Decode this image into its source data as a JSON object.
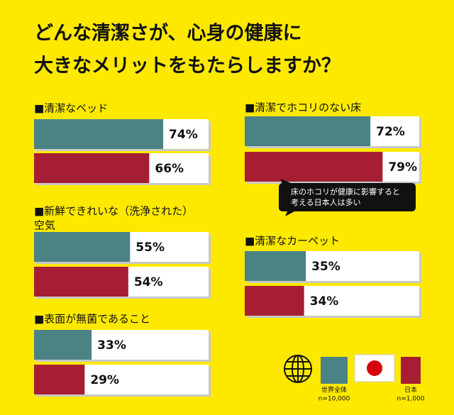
{
  "title": [
    "どんな清潔さが、心身の健康に",
    "大きなメリットをもたらしますか？"
  ],
  "series": [
    {
      "name": "世界全体",
      "note": "n=10,000",
      "color": "#4b8384"
    },
    {
      "name": "日本",
      "note": "n=1,000",
      "color": "#a61e33"
    }
  ],
  "annotation": [
    "床のホコリが健康に影響すると",
    "考える日本人は多い"
  ],
  "chart_data": [
    {
      "type": "bar",
      "title": [
        "■清潔なベッド"
      ],
      "values": [
        74,
        66
      ],
      "value_labels": [
        "74%",
        "66%"
      ],
      "xlim": [
        0,
        100
      ]
    },
    {
      "type": "bar",
      "title": [
        "■新鮮できれいな（洗浄された）",
        "空気"
      ],
      "values": [
        55,
        54
      ],
      "value_labels": [
        "55%",
        "54%"
      ],
      "xlim": [
        0,
        100
      ]
    },
    {
      "type": "bar",
      "title": [
        "■表面が無菌であること"
      ],
      "values": [
        33,
        29
      ],
      "value_labels": [
        "33%",
        "29%"
      ],
      "xlim": [
        0,
        100
      ]
    },
    {
      "type": "bar",
      "title": [
        "■清潔でホコリのない床"
      ],
      "values": [
        72,
        79
      ],
      "value_labels": [
        "72%",
        "79%"
      ],
      "xlim": [
        0,
        100
      ]
    },
    {
      "type": "bar",
      "title": [
        "■清潔なカーペット"
      ],
      "values": [
        35,
        34
      ],
      "value_labels": [
        "35%",
        "34%"
      ],
      "xlim": [
        0,
        100
      ]
    }
  ]
}
